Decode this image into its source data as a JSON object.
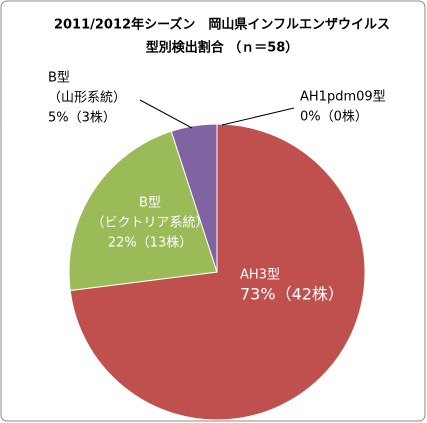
{
  "chart_data": {
    "type": "pie",
    "title": [
      "2011/2012年シーズン　岡山県インフルエンザウイルス",
      "型別検出割合 （ｎ＝58）"
    ],
    "categories": [
      [
        "AH1pdm09型"
      ],
      [
        "AH3型"
      ],
      [
        "B型",
        "（ビクトリア系統）"
      ],
      [
        "B型",
        "（山形系統）"
      ]
    ],
    "values": [
      0,
      73,
      22,
      5
    ],
    "value_labels": [
      "0%（0株）",
      "73%（42株）",
      "22%（13株）",
      "5%（3株）"
    ],
    "colors": [
      "#4f81bd",
      "#c0504d",
      "#9bbb59",
      "#8064a2"
    ]
  }
}
